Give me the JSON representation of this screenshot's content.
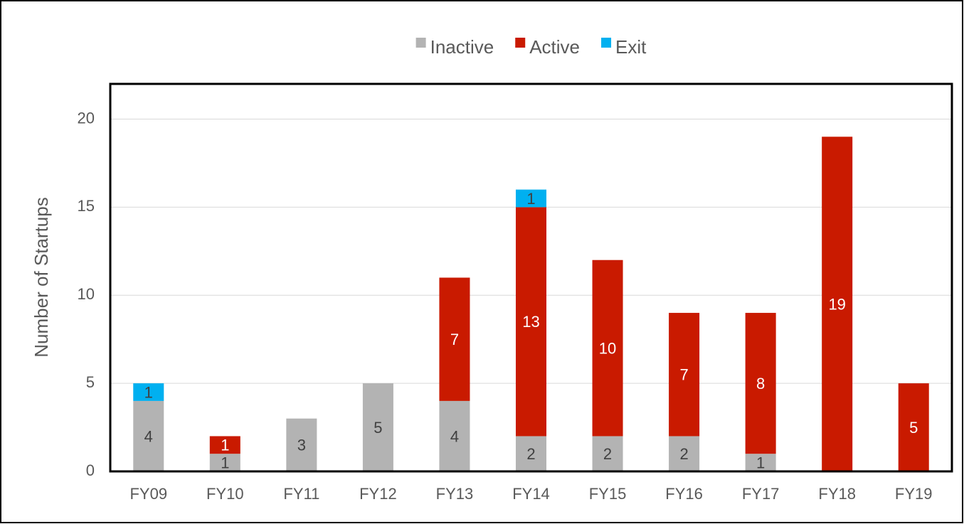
{
  "chart_data": {
    "type": "stacked_bar",
    "y_axis_label": "Number of Startups",
    "categories": [
      "FY09",
      "FY10",
      "FY11",
      "FY12",
      "FY13",
      "FY14",
      "FY15",
      "FY16",
      "FY17",
      "FY18",
      "FY19"
    ],
    "series": [
      {
        "name": "Inactive",
        "color": "#b3b3b3",
        "label_color": "#404040",
        "values": [
          4,
          1,
          3,
          5,
          4,
          2,
          2,
          2,
          1,
          0,
          0
        ]
      },
      {
        "name": "Active",
        "color": "#c91a00",
        "label_color": "#ffffff",
        "values": [
          0,
          1,
          0,
          0,
          7,
          13,
          10,
          7,
          8,
          19,
          5
        ]
      },
      {
        "name": "Exit",
        "color": "#00b0f0",
        "label_color": "#404040",
        "values": [
          1,
          0,
          0,
          0,
          0,
          1,
          0,
          0,
          0,
          0,
          0
        ]
      }
    ],
    "ylim": [
      0,
      22
    ],
    "yticks": [
      0,
      5,
      10,
      15,
      20
    ],
    "grid": true,
    "legend": "top"
  }
}
